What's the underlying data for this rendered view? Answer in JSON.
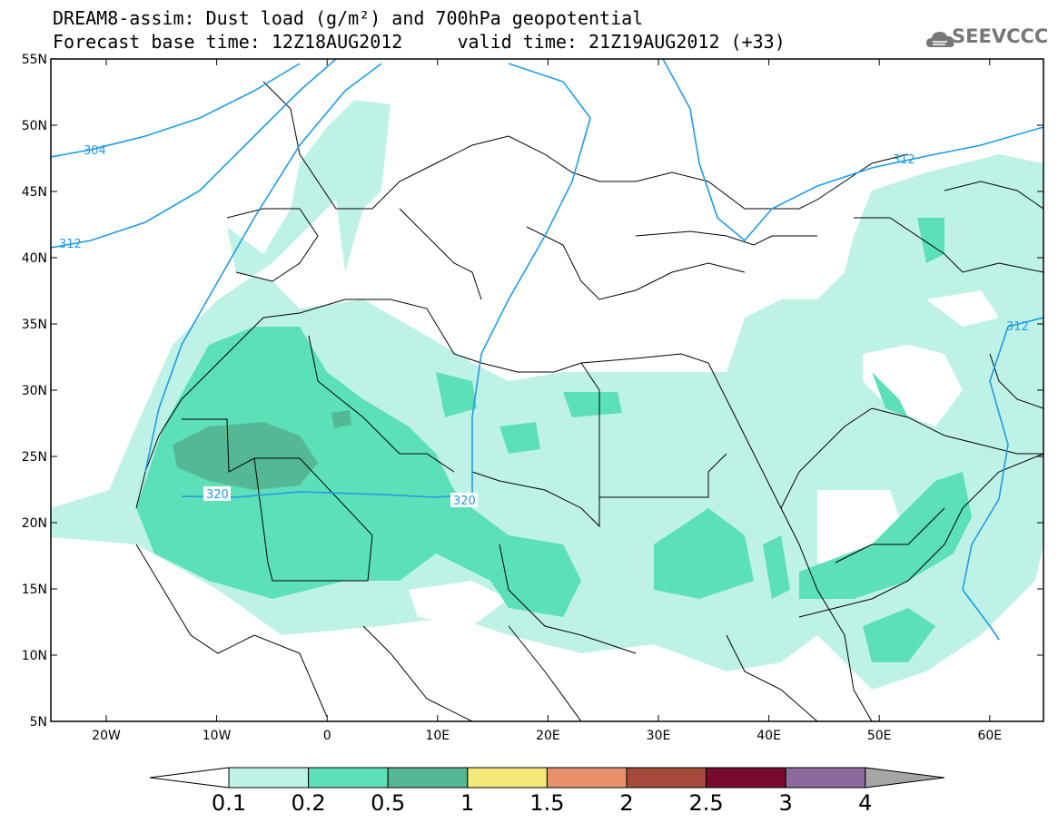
{
  "title": {
    "line1": "DREAM8-assim: Dust load (g/m²) and 700hPa geopotential",
    "line2": "Forecast base time: 12Z18AUG2012     valid time: 21Z19AUG2012 (+33)"
  },
  "logo": {
    "icon": "cloud-logo-icon",
    "text": "SEEVCCC"
  },
  "axes": {
    "lat_labels": [
      "55N",
      "50N",
      "45N",
      "40N",
      "35N",
      "30N",
      "25N",
      "20N",
      "15N",
      "10N",
      "5N"
    ],
    "lon_labels": [
      "20W",
      "10W",
      "0",
      "10E",
      "20E",
      "30E",
      "40E",
      "50E",
      "60E"
    ]
  },
  "contours": [
    {
      "label": "304"
    },
    {
      "label": "312"
    },
    {
      "label": "312"
    },
    {
      "label": "312"
    },
    {
      "label": "320"
    },
    {
      "label": "320"
    }
  ],
  "colorbar": {
    "labels": [
      "0.1",
      "0.2",
      "0.5",
      "1",
      "1.5",
      "2",
      "2.5",
      "3",
      "4"
    ],
    "colors": [
      "#ffffff",
      "#bff2e6",
      "#5ce0b8",
      "#55b894",
      "#f5e87a",
      "#e8916b",
      "#a54b3b",
      "#7a0a2e",
      "#8c6a9e",
      "#a6a6a6"
    ]
  },
  "style": {
    "dust_light": "#bff2e6",
    "dust_mid": "#5ce0b8",
    "dust_dark": "#55b894",
    "contour_color": "#1e9be8",
    "border_color": "#000000"
  }
}
